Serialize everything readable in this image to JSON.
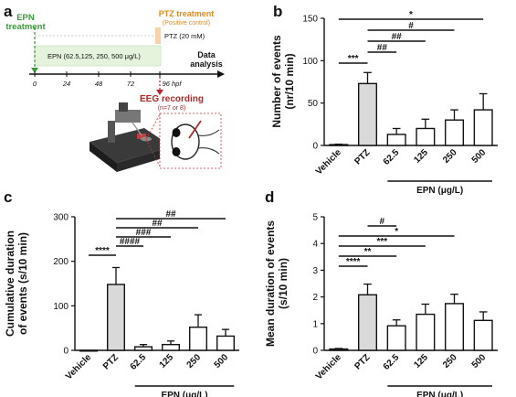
{
  "figure": {
    "panel_labels": [
      "a",
      "b",
      "c",
      "d"
    ]
  },
  "panel_a": {
    "epn_treatment": "EPN\ntreatment",
    "ptz_treatment": "PTZ treatment",
    "ptz_positive": "(Positive control)",
    "ptz_dose": "PTZ (20 mM)",
    "epn_doses": "EPN (62.5,125, 250, 500 μg/L)",
    "data_analysis": "Data\nanalysis",
    "ticks": [
      "0",
      "24",
      "48",
      "72",
      "96 hpf"
    ],
    "eeg_recording": "EEG recording",
    "eeg_n": "(n=7 or 8)"
  },
  "colors": {
    "green": "#3a9a3a",
    "orange": "#e08a1e",
    "red": "#b0282a",
    "ptz_bar": "#d9d9d9",
    "other_bar": "#ffffff"
  },
  "chart_data": [
    {
      "panel": "b",
      "type": "bar",
      "categories": [
        "Vehicle",
        "PTZ",
        "62.5",
        "125",
        "250",
        "500"
      ],
      "values": [
        1,
        73,
        13,
        20,
        30,
        42
      ],
      "errors": [
        0.5,
        13,
        7,
        11,
        12,
        19
      ],
      "ylabel": "Number of events\n(nr/10 min)",
      "ylim": [
        0,
        150
      ],
      "yticks": [
        "0",
        "50",
        "100",
        "150"
      ],
      "group_label": "EPN (μg/L)",
      "significance": [
        {
          "from": 0,
          "to": 1,
          "label": "***"
        },
        {
          "from": 1,
          "to": 2,
          "label": "##"
        },
        {
          "from": 1,
          "to": 3,
          "label": "##"
        },
        {
          "from": 1,
          "to": 4,
          "label": "#"
        },
        {
          "from": 0,
          "to": 5,
          "label": "*"
        }
      ]
    },
    {
      "panel": "c",
      "type": "bar",
      "categories": [
        "Vehicle",
        "PTZ",
        "62.5",
        "125",
        "250",
        "500"
      ],
      "values": [
        0,
        148,
        8,
        13,
        52,
        32
      ],
      "errors": [
        0,
        38,
        5,
        8,
        28,
        15
      ],
      "ylabel": "Cumulative duration\nof events (s/10 min)",
      "ylim": [
        0,
        300
      ],
      "yticks": [
        "0",
        "100",
        "200",
        "300"
      ],
      "group_label": "EPN (μg/L)",
      "significance": [
        {
          "from": 0,
          "to": 1,
          "label": "****"
        },
        {
          "from": 1,
          "to": 2,
          "label": "####"
        },
        {
          "from": 1,
          "to": 3,
          "label": "###"
        },
        {
          "from": 1,
          "to": 4,
          "label": "##"
        },
        {
          "from": 1,
          "to": 5,
          "label": "##"
        }
      ]
    },
    {
      "panel": "d",
      "type": "bar",
      "categories": [
        "Vehicle",
        "PTZ",
        "62.5",
        "125",
        "250",
        "500"
      ],
      "values": [
        0.05,
        2.08,
        0.92,
        1.35,
        1.75,
        1.12
      ],
      "errors": [
        0.02,
        0.4,
        0.22,
        0.38,
        0.35,
        0.32
      ],
      "ylabel": "Mean duration of events\n(s/10 min)",
      "ylim": [
        0,
        5
      ],
      "yticks": [
        "0",
        "1",
        "2",
        "3",
        "4",
        "5"
      ],
      "group_label": "EPN (μg/L)",
      "significance": [
        {
          "from": 0,
          "to": 1,
          "label": "****"
        },
        {
          "from": 0,
          "to": 2,
          "label": "**"
        },
        {
          "from": 0,
          "to": 3,
          "label": "***"
        },
        {
          "from": 0,
          "to": 4,
          "label": "*"
        },
        {
          "from": 1,
          "to": 2,
          "label": "#"
        }
      ]
    }
  ]
}
